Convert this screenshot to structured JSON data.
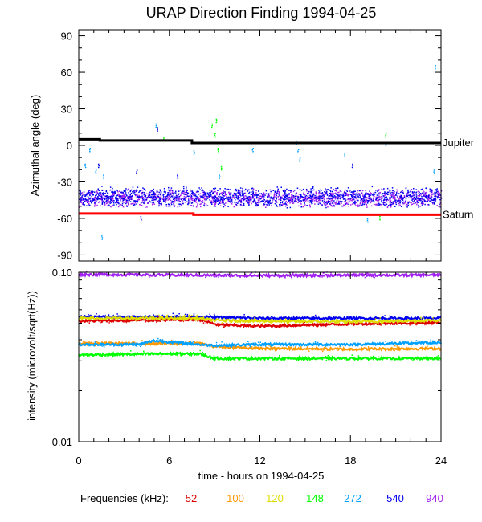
{
  "chart_data": [
    {
      "type": "scatter",
      "title": "URAP Direction Finding  1994-04-25",
      "ylabel": "Azimuthal angle (deg)",
      "xlim": [
        0,
        24
      ],
      "ylim": [
        -95,
        95
      ],
      "yticks": [
        "90",
        "60",
        "30",
        "0",
        "-30",
        "-60",
        "-90"
      ],
      "reference_lines": [
        {
          "name": "Jupiter",
          "color": "#000000",
          "points": [
            [
              0,
              5
            ],
            [
              1.4,
              5
            ],
            [
              1.4,
              4
            ],
            [
              7.5,
              4
            ],
            [
              7.5,
              2
            ],
            [
              24,
              2
            ]
          ]
        },
        {
          "name": "Saturn",
          "color": "#ff0000",
          "points": [
            [
              0,
              -56
            ],
            [
              7.6,
              -56
            ],
            [
              7.6,
              -57
            ],
            [
              24,
              -57
            ]
          ]
        }
      ],
      "series": [
        {
          "freq": "940",
          "color": "#a020f0",
          "y_center": -43,
          "y_spread": 8
        },
        {
          "freq": "540",
          "color": "#0000ee",
          "y_center": -42,
          "y_spread": 9
        }
      ],
      "scattered_points": [
        {
          "x": 0.4,
          "y": -15,
          "color": "#00a0ff"
        },
        {
          "x": 0.7,
          "y": -2,
          "color": "#00a0ff"
        },
        {
          "x": 1.1,
          "y": -20,
          "color": "#00a0ff"
        },
        {
          "x": 1.3,
          "y": -15,
          "color": "#0000ee"
        },
        {
          "x": 1.5,
          "y": -74,
          "color": "#00a0ff"
        },
        {
          "x": 1.6,
          "y": -24,
          "color": "#00a0ff"
        },
        {
          "x": 3.8,
          "y": -20,
          "color": "#0000ee"
        },
        {
          "x": 4.1,
          "y": -58,
          "color": "#0000ee"
        },
        {
          "x": 5.1,
          "y": 18,
          "color": "#00a0ff"
        },
        {
          "x": 5.2,
          "y": 15,
          "color": "#0000ee"
        },
        {
          "x": 5.6,
          "y": 7,
          "color": "#00ff00"
        },
        {
          "x": 6.5,
          "y": -24,
          "color": "#0000ee"
        },
        {
          "x": 7.6,
          "y": -4,
          "color": "#00a0ff"
        },
        {
          "x": 8.8,
          "y": 18,
          "color": "#00ff00"
        },
        {
          "x": 9.1,
          "y": 22,
          "color": "#00ff00"
        },
        {
          "x": 9.0,
          "y": 10,
          "color": "#00ff00"
        },
        {
          "x": 9.2,
          "y": -2,
          "color": "#00ff00"
        },
        {
          "x": 9.4,
          "y": -17,
          "color": "#00ff00"
        },
        {
          "x": 9.3,
          "y": -24,
          "color": "#00a0ff"
        },
        {
          "x": 11.5,
          "y": -2,
          "color": "#00a0ff"
        },
        {
          "x": 14.4,
          "y": 4,
          "color": "#00a0ff"
        },
        {
          "x": 14.5,
          "y": -3,
          "color": "#00a0ff"
        },
        {
          "x": 14.6,
          "y": -10,
          "color": "#00a0ff"
        },
        {
          "x": 17.6,
          "y": -6,
          "color": "#00a0ff"
        },
        {
          "x": 18.1,
          "y": -15,
          "color": "#0000ee"
        },
        {
          "x": 19.1,
          "y": -60,
          "color": "#00a0ff"
        },
        {
          "x": 19.9,
          "y": -58,
          "color": "#00ff00"
        },
        {
          "x": 20.3,
          "y": 10,
          "color": "#00ff00"
        },
        {
          "x": 20.3,
          "y": 3,
          "color": "#00a0ff"
        },
        {
          "x": 23.5,
          "y": -20,
          "color": "#00a0ff"
        },
        {
          "x": 23.6,
          "y": 66,
          "color": "#00a0ff"
        }
      ]
    },
    {
      "type": "line",
      "ylabel": "intensity (microvolt/sqrt(Hz))",
      "xlabel": "time - hours on 1994-04-25",
      "xlim": [
        0,
        24
      ],
      "ylim": [
        0.01,
        0.1
      ],
      "yscale": "log",
      "xticks": [
        "0",
        "6",
        "12",
        "18",
        "24"
      ],
      "yticks": [
        "0.10",
        "0.01"
      ],
      "series": [
        {
          "freq": "940",
          "color": "#a020f0",
          "points": [
            [
              0,
              0.097
            ],
            [
              8,
              0.096
            ],
            [
              12,
              0.0955
            ],
            [
              18,
              0.096
            ],
            [
              24,
              0.0962
            ]
          ]
        },
        {
          "freq": "540",
          "color": "#0000ee",
          "points": [
            [
              0,
              0.0545
            ],
            [
              8,
              0.0545
            ],
            [
              12,
              0.0535
            ],
            [
              18,
              0.0535
            ],
            [
              24,
              0.0535
            ]
          ]
        },
        {
          "freq": "52",
          "color": "#dd0000",
          "points": [
            [
              0,
              0.0515
            ],
            [
              8,
              0.0525
            ],
            [
              9.2,
              0.049
            ],
            [
              12,
              0.048
            ],
            [
              18,
              0.0495
            ],
            [
              24,
              0.0505
            ]
          ]
        },
        {
          "freq": "120",
          "color": "#dddd00",
          "points": [
            [
              0,
              0.0535
            ],
            [
              8,
              0.0535
            ],
            [
              9,
              0.052
            ],
            [
              12,
              0.0515
            ],
            [
              18,
              0.051
            ],
            [
              24,
              0.052
            ]
          ]
        },
        {
          "freq": "100",
          "color": "#ff9900",
          "points": [
            [
              0,
              0.038
            ],
            [
              8,
              0.038
            ],
            [
              9,
              0.0365
            ],
            [
              12,
              0.0355
            ],
            [
              18,
              0.0352
            ],
            [
              24,
              0.0355
            ]
          ]
        },
        {
          "freq": "272",
          "color": "#00a0ff",
          "points": [
            [
              0,
              0.0375
            ],
            [
              4,
              0.0375
            ],
            [
              5,
              0.0395
            ],
            [
              8,
              0.0375
            ],
            [
              9,
              0.037
            ],
            [
              12,
              0.0375
            ],
            [
              18,
              0.0375
            ],
            [
              24,
              0.0385
            ]
          ]
        },
        {
          "freq": "148",
          "color": "#00ff00",
          "points": [
            [
              0,
              0.0325
            ],
            [
              5,
              0.033
            ],
            [
              8,
              0.033
            ],
            [
              9,
              0.031
            ],
            [
              12,
              0.031
            ],
            [
              18,
              0.031
            ],
            [
              24,
              0.031
            ]
          ]
        }
      ]
    }
  ],
  "legend": {
    "label": "Frequencies (kHz):",
    "items": [
      {
        "text": "52",
        "color": "#dd0000"
      },
      {
        "text": "100",
        "color": "#ff9900"
      },
      {
        "text": "120",
        "color": "#dddd00"
      },
      {
        "text": "148",
        "color": "#00ff00"
      },
      {
        "text": "272",
        "color": "#00a0ff"
      },
      {
        "text": "540",
        "color": "#0000ee"
      },
      {
        "text": "940",
        "color": "#a020f0"
      }
    ]
  }
}
